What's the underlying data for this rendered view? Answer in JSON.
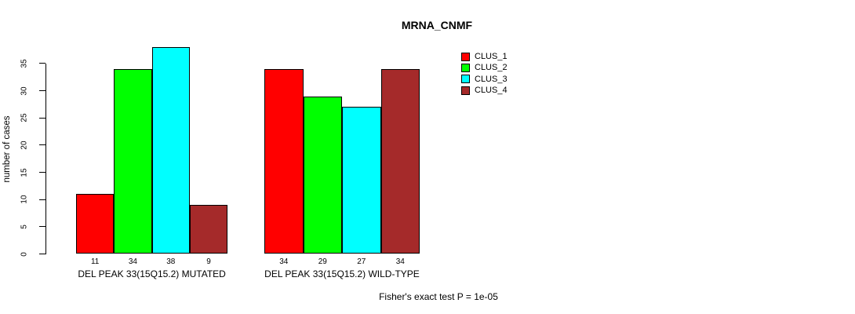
{
  "chart_data": {
    "type": "bar",
    "title": "MRNA_CNMF",
    "ylabel": "number of cases",
    "xlabel": "",
    "yticks": [
      0,
      5,
      10,
      15,
      20,
      25,
      30,
      35
    ],
    "ylim": [
      0,
      38
    ],
    "grid": false,
    "legend_position": "top-right-outside",
    "series": [
      {
        "name": "CLUS_1",
        "color": "#FF0000"
      },
      {
        "name": "CLUS_2",
        "color": "#00FF00"
      },
      {
        "name": "CLUS_3",
        "color": "#00FFFF"
      },
      {
        "name": "CLUS_4",
        "color": "#A52A2A"
      }
    ],
    "groups": [
      {
        "label": "DEL PEAK 33(15Q15.2) MUTATED",
        "values": [
          11,
          34,
          38,
          9
        ]
      },
      {
        "label": "DEL PEAK 33(15Q15.2) WILD-TYPE",
        "values": [
          34,
          29,
          27,
          34
        ]
      }
    ],
    "bar_value_labels": [
      [
        "11",
        "34",
        "38",
        "9"
      ],
      [
        "34",
        "29",
        "27",
        "34"
      ]
    ],
    "footnote": "Fisher's exact test P = 1e-05"
  }
}
